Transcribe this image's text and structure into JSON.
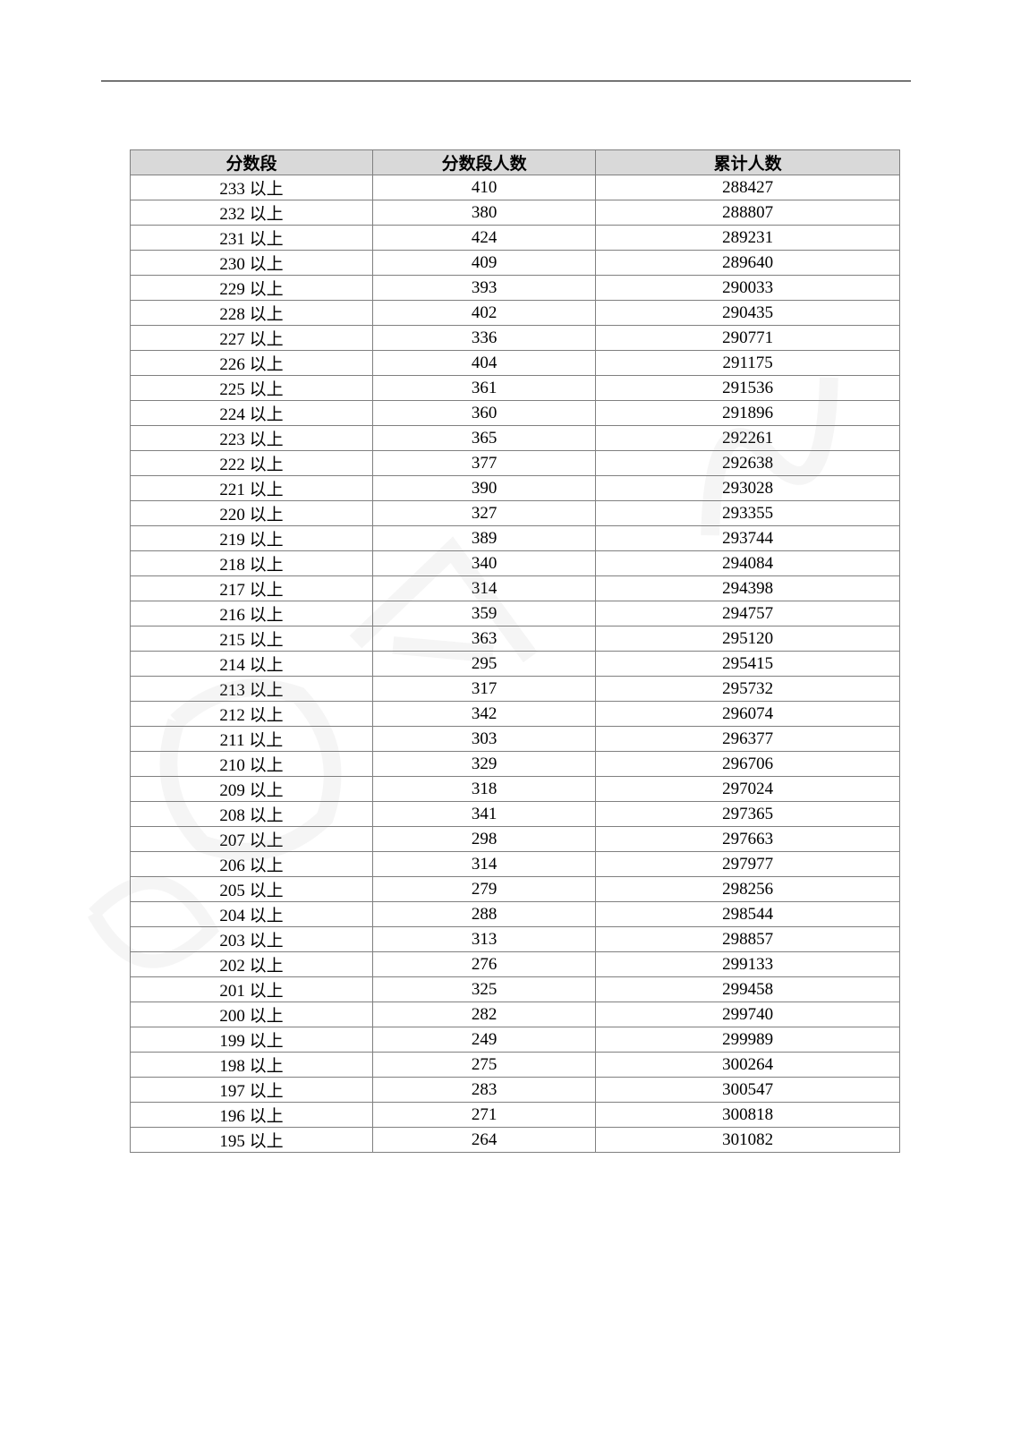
{
  "table": {
    "columns": [
      "分数段",
      "分数段人数",
      "累计人数"
    ],
    "suffix": " 以上",
    "rows": [
      {
        "score": "233",
        "count": "410",
        "cumulative": "288427"
      },
      {
        "score": "232",
        "count": "380",
        "cumulative": "288807"
      },
      {
        "score": "231",
        "count": "424",
        "cumulative": "289231"
      },
      {
        "score": "230",
        "count": "409",
        "cumulative": "289640"
      },
      {
        "score": "229",
        "count": "393",
        "cumulative": "290033"
      },
      {
        "score": "228",
        "count": "402",
        "cumulative": "290435"
      },
      {
        "score": "227",
        "count": "336",
        "cumulative": "290771"
      },
      {
        "score": "226",
        "count": "404",
        "cumulative": "291175"
      },
      {
        "score": "225",
        "count": "361",
        "cumulative": "291536"
      },
      {
        "score": "224",
        "count": "360",
        "cumulative": "291896"
      },
      {
        "score": "223",
        "count": "365",
        "cumulative": "292261"
      },
      {
        "score": "222",
        "count": "377",
        "cumulative": "292638"
      },
      {
        "score": "221",
        "count": "390",
        "cumulative": "293028"
      },
      {
        "score": "220",
        "count": "327",
        "cumulative": "293355"
      },
      {
        "score": "219",
        "count": "389",
        "cumulative": "293744"
      },
      {
        "score": "218",
        "count": "340",
        "cumulative": "294084"
      },
      {
        "score": "217",
        "count": "314",
        "cumulative": "294398"
      },
      {
        "score": "216",
        "count": "359",
        "cumulative": "294757"
      },
      {
        "score": "215",
        "count": "363",
        "cumulative": "295120"
      },
      {
        "score": "214",
        "count": "295",
        "cumulative": "295415"
      },
      {
        "score": "213",
        "count": "317",
        "cumulative": "295732"
      },
      {
        "score": "212",
        "count": "342",
        "cumulative": "296074"
      },
      {
        "score": "211",
        "count": "303",
        "cumulative": "296377"
      },
      {
        "score": "210",
        "count": "329",
        "cumulative": "296706"
      },
      {
        "score": "209",
        "count": "318",
        "cumulative": "297024"
      },
      {
        "score": "208",
        "count": "341",
        "cumulative": "297365"
      },
      {
        "score": "207",
        "count": "298",
        "cumulative": "297663"
      },
      {
        "score": "206",
        "count": "314",
        "cumulative": "297977"
      },
      {
        "score": "205",
        "count": "279",
        "cumulative": "298256"
      },
      {
        "score": "204",
        "count": "288",
        "cumulative": "298544"
      },
      {
        "score": "203",
        "count": "313",
        "cumulative": "298857"
      },
      {
        "score": "202",
        "count": "276",
        "cumulative": "299133"
      },
      {
        "score": "201",
        "count": "325",
        "cumulative": "299458"
      },
      {
        "score": "200",
        "count": "282",
        "cumulative": "299740"
      },
      {
        "score": "199",
        "count": "249",
        "cumulative": "299989"
      },
      {
        "score": "198",
        "count": "275",
        "cumulative": "300264"
      },
      {
        "score": "197",
        "count": "283",
        "cumulative": "300547"
      },
      {
        "score": "196",
        "count": "271",
        "cumulative": "300818"
      },
      {
        "score": "195",
        "count": "264",
        "cumulative": "301082"
      }
    ],
    "header_bg": "#d9d9d9",
    "border_color": "#808080",
    "font_size": 19,
    "row_height": 27.3
  }
}
